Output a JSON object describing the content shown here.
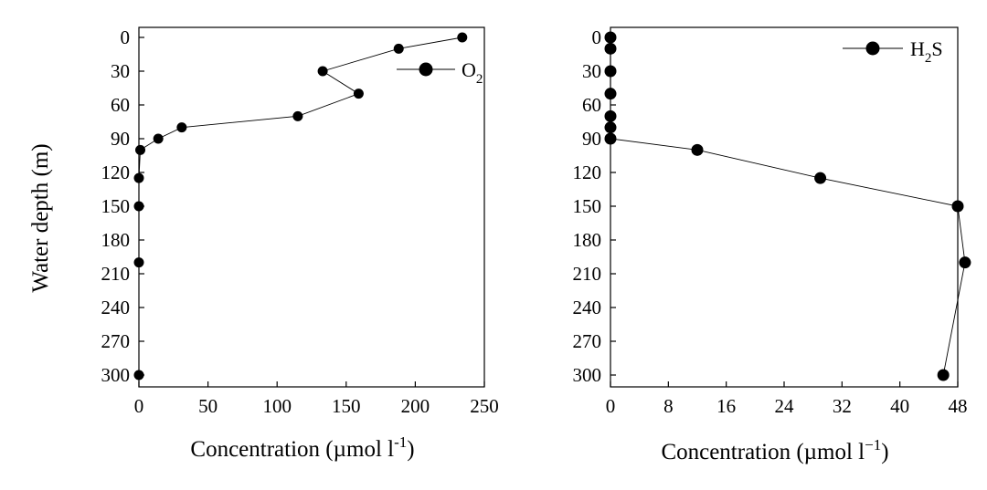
{
  "chart_data": [
    {
      "type": "line",
      "orientation": "depth-profile",
      "xlabel_parts": [
        "Concentration (µmol l",
        "-1",
        ")"
      ],
      "ylabel": "Water depth (m)",
      "xlim": [
        0,
        250
      ],
      "ylim": [
        0,
        300
      ],
      "y_inverted": true,
      "x_ticks": [
        0,
        50,
        100,
        150,
        200,
        250
      ],
      "y_ticks": [
        0,
        30,
        60,
        90,
        120,
        150,
        180,
        210,
        240,
        270,
        300
      ],
      "legend_position": "top-right",
      "series": [
        {
          "name": "O2",
          "name_parts": [
            "O",
            "2"
          ],
          "points": [
            {
              "x": 234,
              "y": 0
            },
            {
              "x": 188,
              "y": 10
            },
            {
              "x": 133,
              "y": 30
            },
            {
              "x": 159,
              "y": 50
            },
            {
              "x": 115,
              "y": 70
            },
            {
              "x": 31,
              "y": 80
            },
            {
              "x": 14,
              "y": 90
            },
            {
              "x": 1,
              "y": 100
            },
            {
              "x": 0,
              "y": 125
            },
            {
              "x": 0,
              "y": 150
            },
            {
              "x": 0,
              "y": 200
            },
            {
              "x": 0,
              "y": 300
            }
          ]
        }
      ]
    },
    {
      "type": "line",
      "orientation": "depth-profile",
      "xlabel_parts": [
        "Concentration (µmol l",
        "−1",
        ")"
      ],
      "ylabel": "",
      "xlim": [
        0,
        48
      ],
      "ylim": [
        0,
        300
      ],
      "y_inverted": true,
      "x_ticks": [
        0,
        8,
        16,
        24,
        32,
        40,
        48
      ],
      "y_ticks": [
        0,
        30,
        60,
        90,
        120,
        150,
        180,
        210,
        240,
        270,
        300
      ],
      "legend_position": "top-right",
      "series": [
        {
          "name": "H2S",
          "name_parts": [
            "H",
            "2",
            "S"
          ],
          "points": [
            {
              "x": 0,
              "y": 0
            },
            {
              "x": 0,
              "y": 10
            },
            {
              "x": 0,
              "y": 30
            },
            {
              "x": 0,
              "y": 50
            },
            {
              "x": 0,
              "y": 70
            },
            {
              "x": 0,
              "y": 80
            },
            {
              "x": 0,
              "y": 90
            },
            {
              "x": 12,
              "y": 100
            },
            {
              "x": 29,
              "y": 125
            },
            {
              "x": 48,
              "y": 150
            },
            {
              "x": 49,
              "y": 200
            },
            {
              "x": 46,
              "y": 300
            }
          ]
        }
      ]
    }
  ]
}
